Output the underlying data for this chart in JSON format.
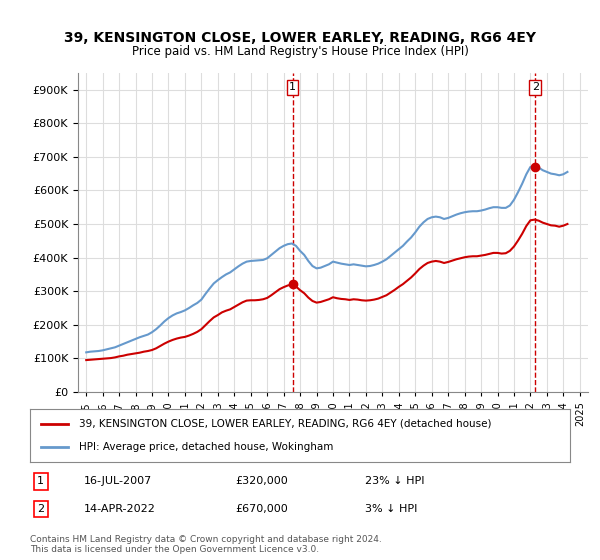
{
  "title": "39, KENSINGTON CLOSE, LOWER EARLEY, READING, RG6 4EY",
  "subtitle": "Price paid vs. HM Land Registry's House Price Index (HPI)",
  "legend_line1": "39, KENSINGTON CLOSE, LOWER EARLEY, READING, RG6 4EY (detached house)",
  "legend_line2": "HPI: Average price, detached house, Wokingham",
  "annotation1_label": "1",
  "annotation1_date": "16-JUL-2007",
  "annotation1_price": "£320,000",
  "annotation1_hpi": "23% ↓ HPI",
  "annotation2_label": "2",
  "annotation2_date": "14-APR-2022",
  "annotation2_price": "£670,000",
  "annotation2_hpi": "3% ↓ HPI",
  "footer": "Contains HM Land Registry data © Crown copyright and database right 2024.\nThis data is licensed under the Open Government Licence v3.0.",
  "sale_color": "#cc0000",
  "hpi_color": "#6699cc",
  "dashed_line_color": "#cc0000",
  "background_color": "#ffffff",
  "grid_color": "#dddddd",
  "ylim": [
    0,
    950000
  ],
  "yticks": [
    0,
    100000,
    200000,
    300000,
    400000,
    500000,
    600000,
    700000,
    800000,
    900000
  ],
  "xlim_start": 1994.5,
  "xlim_end": 2025.5,
  "sale1_x": 2007.54,
  "sale1_y": 320000,
  "sale2_x": 2022.29,
  "sale2_y": 670000,
  "hpi_years": [
    1995.0,
    1995.25,
    1995.5,
    1995.75,
    1996.0,
    1996.25,
    1996.5,
    1996.75,
    1997.0,
    1997.25,
    1997.5,
    1997.75,
    1998.0,
    1998.25,
    1998.5,
    1998.75,
    1999.0,
    1999.25,
    1999.5,
    1999.75,
    2000.0,
    2000.25,
    2000.5,
    2000.75,
    2001.0,
    2001.25,
    2001.5,
    2001.75,
    2002.0,
    2002.25,
    2002.5,
    2002.75,
    2003.0,
    2003.25,
    2003.5,
    2003.75,
    2004.0,
    2004.25,
    2004.5,
    2004.75,
    2005.0,
    2005.25,
    2005.5,
    2005.75,
    2006.0,
    2006.25,
    2006.5,
    2006.75,
    2007.0,
    2007.25,
    2007.5,
    2007.75,
    2008.0,
    2008.25,
    2008.5,
    2008.75,
    2009.0,
    2009.25,
    2009.5,
    2009.75,
    2010.0,
    2010.25,
    2010.5,
    2010.75,
    2011.0,
    2011.25,
    2011.5,
    2011.75,
    2012.0,
    2012.25,
    2012.5,
    2012.75,
    2013.0,
    2013.25,
    2013.5,
    2013.75,
    2014.0,
    2014.25,
    2014.5,
    2014.75,
    2015.0,
    2015.25,
    2015.5,
    2015.75,
    2016.0,
    2016.25,
    2016.5,
    2016.75,
    2017.0,
    2017.25,
    2017.5,
    2017.75,
    2018.0,
    2018.25,
    2018.5,
    2018.75,
    2019.0,
    2019.25,
    2019.5,
    2019.75,
    2020.0,
    2020.25,
    2020.5,
    2020.75,
    2021.0,
    2021.25,
    2021.5,
    2021.75,
    2022.0,
    2022.25,
    2022.5,
    2022.75,
    2023.0,
    2023.25,
    2023.5,
    2023.75,
    2024.0,
    2024.25
  ],
  "hpi_values": [
    118000,
    120000,
    121000,
    122000,
    124000,
    127000,
    130000,
    133000,
    138000,
    143000,
    148000,
    153000,
    158000,
    163000,
    167000,
    171000,
    178000,
    187000,
    198000,
    210000,
    220000,
    228000,
    234000,
    238000,
    243000,
    250000,
    258000,
    265000,
    275000,
    292000,
    308000,
    323000,
    333000,
    342000,
    350000,
    356000,
    365000,
    374000,
    382000,
    388000,
    390000,
    391000,
    392000,
    393000,
    398000,
    408000,
    418000,
    428000,
    435000,
    440000,
    442000,
    435000,
    420000,
    408000,
    390000,
    375000,
    368000,
    370000,
    375000,
    380000,
    388000,
    385000,
    382000,
    380000,
    378000,
    380000,
    378000,
    376000,
    374000,
    375000,
    378000,
    382000,
    388000,
    395000,
    405000,
    415000,
    425000,
    435000,
    448000,
    460000,
    475000,
    492000,
    505000,
    515000,
    520000,
    522000,
    520000,
    515000,
    518000,
    523000,
    528000,
    532000,
    535000,
    537000,
    538000,
    538000,
    540000,
    543000,
    547000,
    550000,
    550000,
    548000,
    548000,
    555000,
    572000,
    595000,
    620000,
    648000,
    670000,
    672000,
    668000,
    660000,
    655000,
    650000,
    648000,
    645000,
    648000,
    655000
  ],
  "sale_line_years": [
    1995.0,
    1995.25,
    1995.5,
    1995.75,
    1996.0,
    1996.25,
    1996.5,
    1996.75,
    1997.0,
    1997.25,
    1997.5,
    1997.75,
    1998.0,
    1998.25,
    1998.5,
    1998.75,
    1999.0,
    1999.25,
    1999.5,
    1999.75,
    2000.0,
    2000.25,
    2000.5,
    2000.75,
    2001.0,
    2001.25,
    2001.5,
    2001.75,
    2002.0,
    2002.25,
    2002.5,
    2002.75,
    2003.0,
    2003.25,
    2003.5,
    2003.75,
    2004.0,
    2004.25,
    2004.5,
    2004.75,
    2005.0,
    2005.25,
    2005.5,
    2005.75,
    2006.0,
    2006.25,
    2006.5,
    2006.75,
    2007.0,
    2007.25,
    2007.5,
    2007.75,
    2008.0,
    2008.25,
    2008.5,
    2008.75,
    2009.0,
    2009.25,
    2009.5,
    2009.75,
    2010.0,
    2010.25,
    2010.5,
    2010.75,
    2011.0,
    2011.25,
    2011.5,
    2011.75,
    2012.0,
    2012.25,
    2012.5,
    2012.75,
    2013.0,
    2013.25,
    2013.5,
    2013.75,
    2014.0,
    2014.25,
    2014.5,
    2014.75,
    2015.0,
    2015.25,
    2015.5,
    2015.75,
    2016.0,
    2016.25,
    2016.5,
    2016.75,
    2017.0,
    2017.25,
    2017.5,
    2017.75,
    2018.0,
    2018.25,
    2018.5,
    2018.75,
    2019.0,
    2019.25,
    2019.5,
    2019.75,
    2020.0,
    2020.25,
    2020.5,
    2020.75,
    2021.0,
    2021.25,
    2021.5,
    2021.75,
    2022.0,
    2022.25,
    2022.5,
    2022.75,
    2023.0,
    2023.25,
    2023.5,
    2023.75,
    2024.0,
    2024.25
  ],
  "sale_line_values": [
    95000,
    96000,
    97000,
    98000,
    99000,
    100000,
    101000,
    103000,
    106000,
    108000,
    111000,
    113000,
    115000,
    117000,
    120000,
    122000,
    125000,
    130000,
    137000,
    144000,
    150000,
    155000,
    159000,
    162000,
    164000,
    168000,
    173000,
    179000,
    187000,
    199000,
    211000,
    222000,
    229000,
    237000,
    242000,
    246000,
    253000,
    260000,
    267000,
    272000,
    273000,
    273000,
    274000,
    276000,
    280000,
    288000,
    297000,
    306000,
    312000,
    317000,
    320000,
    314000,
    303000,
    294000,
    281000,
    271000,
    266000,
    268000,
    272000,
    276000,
    282000,
    279000,
    277000,
    276000,
    274000,
    276000,
    275000,
    273000,
    272000,
    273000,
    275000,
    278000,
    283000,
    288000,
    296000,
    304000,
    313000,
    321000,
    331000,
    341000,
    353000,
    366000,
    376000,
    384000,
    388000,
    390000,
    388000,
    384000,
    387000,
    391000,
    395000,
    398000,
    401000,
    403000,
    404000,
    404000,
    406000,
    408000,
    411000,
    414000,
    414000,
    412000,
    413000,
    420000,
    433000,
    451000,
    471000,
    494000,
    511000,
    513000,
    510000,
    504000,
    500000,
    496000,
    495000,
    492000,
    495000,
    500000
  ]
}
